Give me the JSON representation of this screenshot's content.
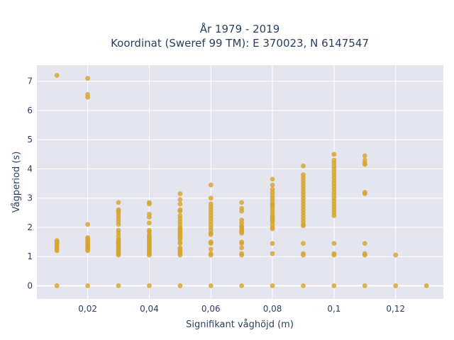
{
  "chart_data": {
    "type": "scatter",
    "title_line1": "År 1979 - 2019",
    "title_line2": "Koordinat (Sweref 99 TM): E 370023, N 6147547",
    "xlabel": "Signifikant våghöjd (m)",
    "ylabel": "Vågperiod (s)",
    "xlim": [
      0.0035,
      0.1355
    ],
    "ylim": [
      -0.45,
      7.55
    ],
    "x_ticks": [
      {
        "value": 0.02,
        "label": "0,02"
      },
      {
        "value": 0.04,
        "label": "0,04"
      },
      {
        "value": 0.06,
        "label": "0,06"
      },
      {
        "value": 0.08,
        "label": "0,08"
      },
      {
        "value": 0.1,
        "label": "0,1"
      },
      {
        "value": 0.12,
        "label": "0,12"
      }
    ],
    "y_ticks": [
      {
        "value": 0,
        "label": "0"
      },
      {
        "value": 1,
        "label": "1"
      },
      {
        "value": 2,
        "label": "2"
      },
      {
        "value": 3,
        "label": "3"
      },
      {
        "value": 4,
        "label": "4"
      },
      {
        "value": 5,
        "label": "5"
      },
      {
        "value": 6,
        "label": "6"
      },
      {
        "value": 7,
        "label": "7"
      }
    ],
    "grid": true,
    "marker_color": "#d4a52c",
    "plot_bg": "#e5e5f0",
    "points": [
      [
        0.01,
        7.2
      ],
      [
        0.01,
        1.55
      ],
      [
        0.01,
        1.5
      ],
      [
        0.01,
        1.45
      ],
      [
        0.01,
        1.4
      ],
      [
        0.01,
        1.35
      ],
      [
        0.01,
        1.3
      ],
      [
        0.01,
        1.25
      ],
      [
        0.01,
        1.2
      ],
      [
        0.01,
        0
      ],
      [
        0.02,
        7.1
      ],
      [
        0.02,
        6.55
      ],
      [
        0.02,
        6.45
      ],
      [
        0.02,
        2.1
      ],
      [
        0.02,
        1.65
      ],
      [
        0.02,
        1.6
      ],
      [
        0.02,
        1.55
      ],
      [
        0.02,
        1.5
      ],
      [
        0.02,
        1.45
      ],
      [
        0.02,
        1.4
      ],
      [
        0.02,
        1.35
      ],
      [
        0.02,
        1.3
      ],
      [
        0.02,
        1.25
      ],
      [
        0.02,
        1.2
      ],
      [
        0.02,
        0
      ],
      [
        0.03,
        2.85
      ],
      [
        0.03,
        2.6
      ],
      [
        0.03,
        2.55
      ],
      [
        0.03,
        2.5
      ],
      [
        0.03,
        2.4
      ],
      [
        0.03,
        2.3
      ],
      [
        0.03,
        2.2
      ],
      [
        0.03,
        2.1
      ],
      [
        0.03,
        1.9
      ],
      [
        0.03,
        1.8
      ],
      [
        0.03,
        1.7
      ],
      [
        0.03,
        1.6
      ],
      [
        0.03,
        1.55
      ],
      [
        0.03,
        1.5
      ],
      [
        0.03,
        1.45
      ],
      [
        0.03,
        1.4
      ],
      [
        0.03,
        1.35
      ],
      [
        0.03,
        1.3
      ],
      [
        0.03,
        1.25
      ],
      [
        0.03,
        1.2
      ],
      [
        0.03,
        1.15
      ],
      [
        0.03,
        1.1
      ],
      [
        0.03,
        1.05
      ],
      [
        0.03,
        0
      ],
      [
        0.04,
        2.85
      ],
      [
        0.04,
        2.8
      ],
      [
        0.04,
        2.45
      ],
      [
        0.04,
        2.35
      ],
      [
        0.04,
        2.15
      ],
      [
        0.04,
        1.9
      ],
      [
        0.04,
        1.85
      ],
      [
        0.04,
        1.75
      ],
      [
        0.04,
        1.7
      ],
      [
        0.04,
        1.65
      ],
      [
        0.04,
        1.6
      ],
      [
        0.04,
        1.55
      ],
      [
        0.04,
        1.5
      ],
      [
        0.04,
        1.45
      ],
      [
        0.04,
        1.4
      ],
      [
        0.04,
        1.35
      ],
      [
        0.04,
        1.3
      ],
      [
        0.04,
        1.25
      ],
      [
        0.04,
        1.2
      ],
      [
        0.04,
        1.15
      ],
      [
        0.04,
        1.1
      ],
      [
        0.04,
        1.05
      ],
      [
        0.04,
        0
      ],
      [
        0.05,
        3.15
      ],
      [
        0.05,
        2.95
      ],
      [
        0.05,
        2.8
      ],
      [
        0.05,
        2.6
      ],
      [
        0.05,
        2.55
      ],
      [
        0.05,
        2.4
      ],
      [
        0.05,
        2.3
      ],
      [
        0.05,
        2.2
      ],
      [
        0.05,
        2.1
      ],
      [
        0.05,
        2.0
      ],
      [
        0.05,
        1.95
      ],
      [
        0.05,
        1.9
      ],
      [
        0.05,
        1.85
      ],
      [
        0.05,
        1.8
      ],
      [
        0.05,
        1.75
      ],
      [
        0.05,
        1.7
      ],
      [
        0.05,
        1.65
      ],
      [
        0.05,
        1.6
      ],
      [
        0.05,
        1.5
      ],
      [
        0.05,
        1.45
      ],
      [
        0.05,
        1.3
      ],
      [
        0.05,
        1.25
      ],
      [
        0.05,
        1.2
      ],
      [
        0.05,
        1.15
      ],
      [
        0.05,
        1.1
      ],
      [
        0.05,
        1.05
      ],
      [
        0.05,
        0
      ],
      [
        0.06,
        3.45
      ],
      [
        0.06,
        3.0
      ],
      [
        0.06,
        2.8
      ],
      [
        0.06,
        2.7
      ],
      [
        0.06,
        2.6
      ],
      [
        0.06,
        2.5
      ],
      [
        0.06,
        2.4
      ],
      [
        0.06,
        2.3
      ],
      [
        0.06,
        2.2
      ],
      [
        0.06,
        2.1
      ],
      [
        0.06,
        2.0
      ],
      [
        0.06,
        1.9
      ],
      [
        0.06,
        1.8
      ],
      [
        0.06,
        1.75
      ],
      [
        0.06,
        1.5
      ],
      [
        0.06,
        1.45
      ],
      [
        0.06,
        1.25
      ],
      [
        0.06,
        1.1
      ],
      [
        0.06,
        1.05
      ],
      [
        0.06,
        0
      ],
      [
        0.07,
        2.85
      ],
      [
        0.07,
        2.65
      ],
      [
        0.07,
        2.55
      ],
      [
        0.07,
        2.25
      ],
      [
        0.07,
        2.15
      ],
      [
        0.07,
        2.05
      ],
      [
        0.07,
        2.0
      ],
      [
        0.07,
        1.95
      ],
      [
        0.07,
        1.9
      ],
      [
        0.07,
        1.85
      ],
      [
        0.07,
        1.8
      ],
      [
        0.07,
        1.5
      ],
      [
        0.07,
        1.45
      ],
      [
        0.07,
        1.3
      ],
      [
        0.07,
        1.1
      ],
      [
        0.07,
        1.05
      ],
      [
        0.07,
        0
      ],
      [
        0.08,
        3.65
      ],
      [
        0.08,
        3.45
      ],
      [
        0.08,
        3.3
      ],
      [
        0.08,
        3.2
      ],
      [
        0.08,
        3.1
      ],
      [
        0.08,
        3.0
      ],
      [
        0.08,
        2.9
      ],
      [
        0.08,
        2.8
      ],
      [
        0.08,
        2.75
      ],
      [
        0.08,
        2.7
      ],
      [
        0.08,
        2.6
      ],
      [
        0.08,
        2.5
      ],
      [
        0.08,
        2.4
      ],
      [
        0.08,
        2.35
      ],
      [
        0.08,
        2.3
      ],
      [
        0.08,
        2.25
      ],
      [
        0.08,
        2.2
      ],
      [
        0.08,
        2.1
      ],
      [
        0.08,
        2.0
      ],
      [
        0.08,
        1.95
      ],
      [
        0.08,
        1.45
      ],
      [
        0.08,
        1.1
      ],
      [
        0.08,
        0
      ],
      [
        0.09,
        4.1
      ],
      [
        0.09,
        3.8
      ],
      [
        0.09,
        3.7
      ],
      [
        0.09,
        3.6
      ],
      [
        0.09,
        3.5
      ],
      [
        0.09,
        3.4
      ],
      [
        0.09,
        3.3
      ],
      [
        0.09,
        3.2
      ],
      [
        0.09,
        3.1
      ],
      [
        0.09,
        3.0
      ],
      [
        0.09,
        2.9
      ],
      [
        0.09,
        2.8
      ],
      [
        0.09,
        2.7
      ],
      [
        0.09,
        2.6
      ],
      [
        0.09,
        2.5
      ],
      [
        0.09,
        2.4
      ],
      [
        0.09,
        2.3
      ],
      [
        0.09,
        2.2
      ],
      [
        0.09,
        2.1
      ],
      [
        0.09,
        2.05
      ],
      [
        0.09,
        1.45
      ],
      [
        0.09,
        1.1
      ],
      [
        0.09,
        1.05
      ],
      [
        0.09,
        0
      ],
      [
        0.1,
        4.5
      ],
      [
        0.1,
        4.3
      ],
      [
        0.1,
        4.2
      ],
      [
        0.1,
        4.1
      ],
      [
        0.1,
        4.0
      ],
      [
        0.1,
        3.9
      ],
      [
        0.1,
        3.8
      ],
      [
        0.1,
        3.7
      ],
      [
        0.1,
        3.6
      ],
      [
        0.1,
        3.5
      ],
      [
        0.1,
        3.4
      ],
      [
        0.1,
        3.3
      ],
      [
        0.1,
        3.2
      ],
      [
        0.1,
        3.1
      ],
      [
        0.1,
        3.0
      ],
      [
        0.1,
        2.9
      ],
      [
        0.1,
        2.8
      ],
      [
        0.1,
        2.7
      ],
      [
        0.1,
        2.6
      ],
      [
        0.1,
        2.5
      ],
      [
        0.1,
        2.4
      ],
      [
        0.1,
        1.45
      ],
      [
        0.1,
        1.1
      ],
      [
        0.1,
        1.05
      ],
      [
        0.1,
        0
      ],
      [
        0.11,
        4.45
      ],
      [
        0.11,
        4.3
      ],
      [
        0.11,
        4.2
      ],
      [
        0.11,
        4.15
      ],
      [
        0.11,
        3.2
      ],
      [
        0.11,
        3.15
      ],
      [
        0.11,
        1.45
      ],
      [
        0.11,
        1.1
      ],
      [
        0.11,
        1.05
      ],
      [
        0.11,
        0
      ],
      [
        0.12,
        1.05
      ],
      [
        0.12,
        0
      ],
      [
        0.13,
        0
      ]
    ]
  }
}
